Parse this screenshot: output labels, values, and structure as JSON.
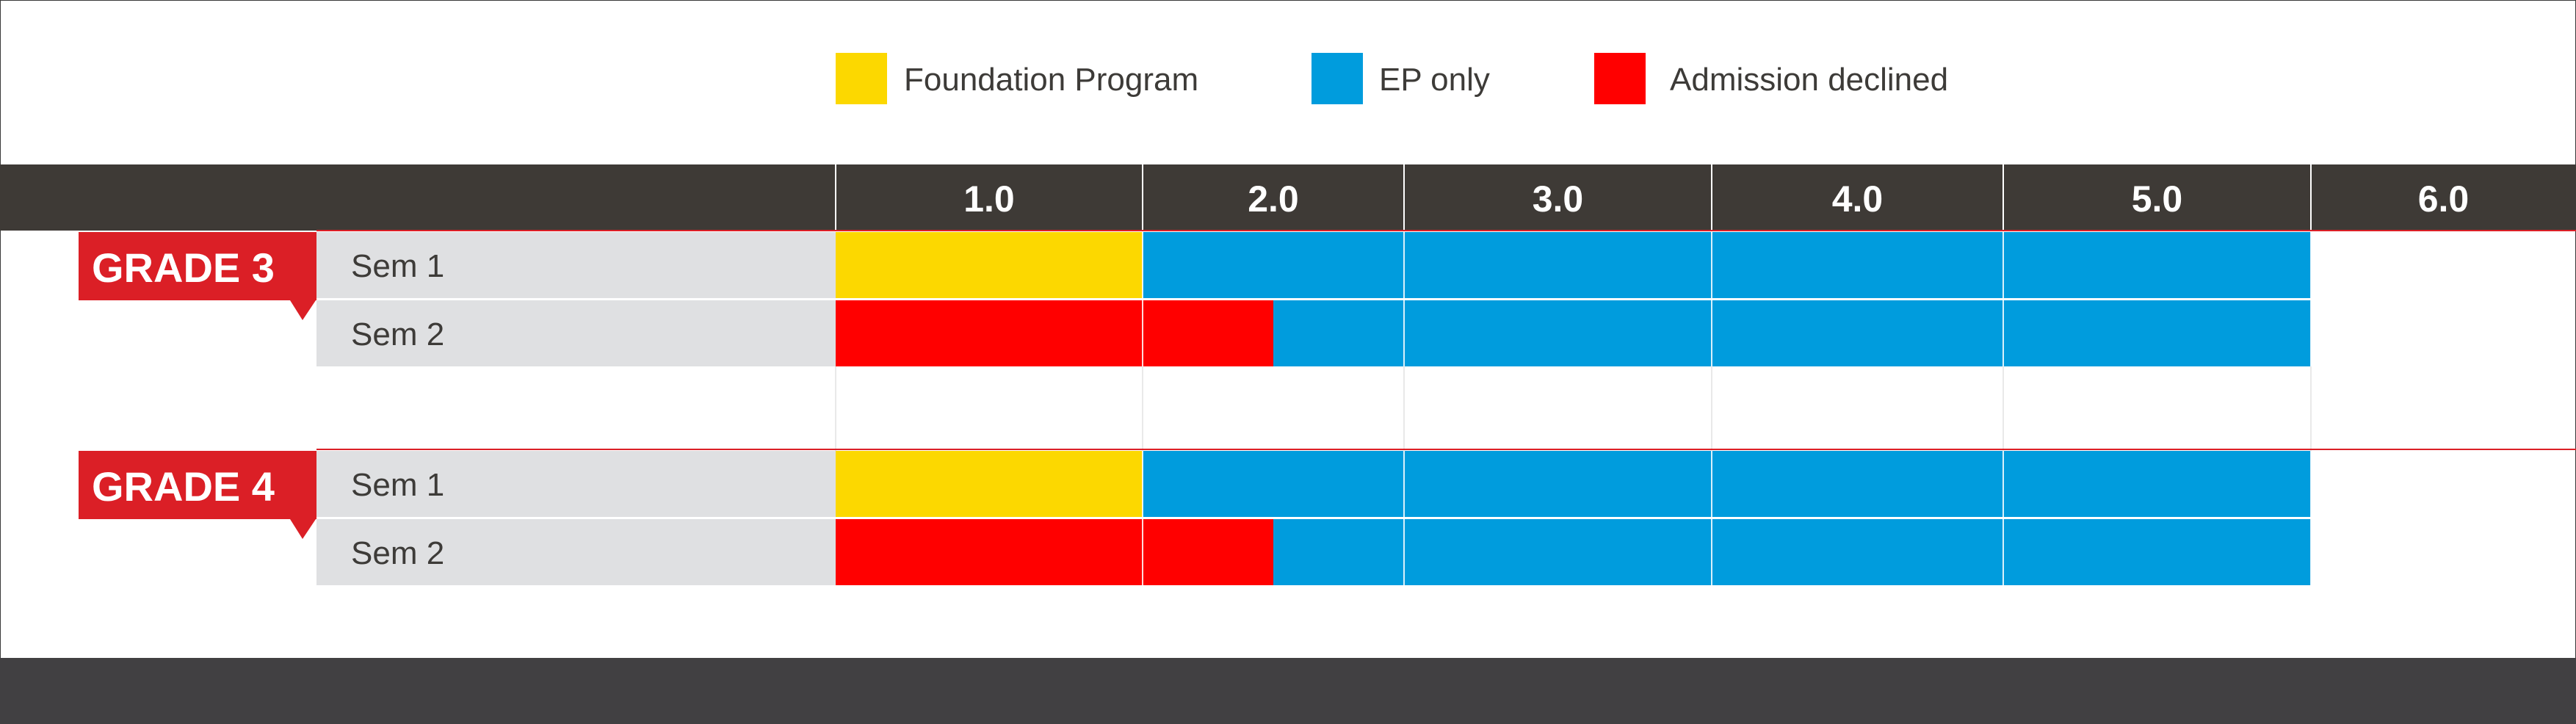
{
  "chart_data": {
    "type": "bar",
    "orientation": "horizontal",
    "stacked": true,
    "legend": [
      {
        "label": "Foundation Program",
        "color": "#FCD800"
      },
      {
        "label": "EP only",
        "color": "#009CDD"
      },
      {
        "label": "Admission declined",
        "color": "#FF0000"
      }
    ],
    "legend_position": "top",
    "x_ticks": [
      "1.0",
      "2.0",
      "3.0",
      "4.0",
      "5.0",
      "6.0"
    ],
    "groups": [
      {
        "label": "GRADE 3",
        "rows": [
          {
            "label": "Sem 1",
            "segments": [
              {
                "category": "Foundation Program",
                "from": "1.0",
                "to": "2.0"
              },
              {
                "category": "EP only",
                "from": "2.0",
                "to": "6.0"
              }
            ]
          },
          {
            "label": "Sem 2",
            "segments": [
              {
                "category": "Admission declined",
                "from": "1.0",
                "to": "2.0"
              },
              {
                "category": "Admission declined",
                "from": "2.0",
                "to": "2.5"
              },
              {
                "category": "EP only",
                "from": "2.5",
                "to": "6.0"
              }
            ]
          }
        ]
      },
      {
        "label": "GRADE 4",
        "rows": [
          {
            "label": "Sem 1",
            "segments": [
              {
                "category": "Foundation Program",
                "from": "1.0",
                "to": "2.0"
              },
              {
                "category": "EP only",
                "from": "2.0",
                "to": "6.0"
              }
            ]
          },
          {
            "label": "Sem 2",
            "segments": [
              {
                "category": "Admission declined",
                "from": "1.0",
                "to": "2.0"
              },
              {
                "category": "Admission declined",
                "from": "2.0",
                "to": "2.5"
              },
              {
                "category": "EP only",
                "from": "2.5",
                "to": "6.0"
              }
            ]
          }
        ]
      }
    ],
    "colors": {
      "header_band": "#3E3A36",
      "footer_band": "#414042",
      "row_label_bg": "#DFE0E2",
      "grade_badge": "#DB1F26",
      "text_dark": "#3D3B38"
    }
  }
}
